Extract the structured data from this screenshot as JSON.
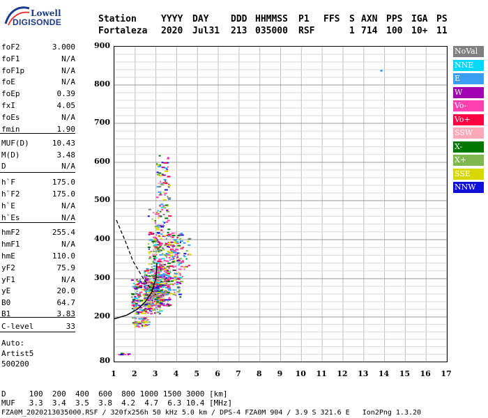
{
  "logo": {
    "top": "Lowell",
    "bottom": "DIGISONDE"
  },
  "header": {
    "row1": [
      "Station",
      "YYYY",
      "DAY",
      "DDD",
      "HHMMSS",
      "P1",
      "FFS",
      "S",
      "AXN",
      "PPS",
      "IGA",
      "PS"
    ],
    "row2": [
      "Fortaleza",
      "2020",
      "Jul31",
      "213",
      "035000",
      "RSF",
      "1",
      "714",
      "100",
      "10+",
      "11"
    ]
  },
  "params": [
    {
      "label": "foF2",
      "value": "3.000"
    },
    {
      "label": "foF1",
      "value": "N/A"
    },
    {
      "label": "foF1p",
      "value": "N/A"
    },
    {
      "label": "foE",
      "value": "N/A"
    },
    {
      "label": "foEp",
      "value": "0.39"
    },
    {
      "label": "fxI",
      "value": "4.05"
    },
    {
      "label": "foEs",
      "value": "N/A"
    },
    {
      "label": "fmin",
      "value": "1.90"
    },
    {
      "label": "MUF(D)",
      "value": "10.43"
    },
    {
      "label": "M(D)",
      "value": "3.48"
    },
    {
      "label": "D",
      "value": "N/A"
    },
    {
      "label": "h`F",
      "value": "175.0"
    },
    {
      "label": "h`F2",
      "value": "175.0"
    },
    {
      "label": "h`E",
      "value": "N/A"
    },
    {
      "label": "h`Es",
      "value": "N/A"
    },
    {
      "label": "hmF2",
      "value": "255.4"
    },
    {
      "label": "hmF1",
      "value": "N/A"
    },
    {
      "label": "hmE",
      "value": "110.0"
    },
    {
      "label": "yF2",
      "value": "75.9"
    },
    {
      "label": "yF1",
      "value": "N/A"
    },
    {
      "label": "yE",
      "value": "20.0"
    },
    {
      "label": "B0",
      "value": "64.7"
    },
    {
      "label": "B1",
      "value": "3.83"
    },
    {
      "label": "C-level",
      "value": "33"
    }
  ],
  "auto": {
    "line1": "Auto:",
    "line2": "Artist5",
    "line3": "500200"
  },
  "legend": [
    {
      "label": "NoVal",
      "color": "#808080"
    },
    {
      "label": "NNE",
      "color": "#00d8ff"
    },
    {
      "label": "E",
      "color": "#3a9ff2"
    },
    {
      "label": "W",
      "color": "#a000b0"
    },
    {
      "label": "Vo-",
      "color": "#ff40b0"
    },
    {
      "label": "Vo+",
      "color": "#ff0040"
    },
    {
      "label": "SSW",
      "color": "#ffa8b8"
    },
    {
      "label": "X-",
      "color": "#007800"
    },
    {
      "label": "X+",
      "color": "#80b850"
    },
    {
      "label": "SSE",
      "color": "#d8d800"
    },
    {
      "label": "NNW",
      "color": "#1010d8"
    }
  ],
  "chart_data": {
    "type": "scatter",
    "xlim": [
      1,
      17
    ],
    "ylim": [
      80,
      900
    ],
    "x_ticks": [
      "1",
      "2",
      "3",
      "4",
      "5",
      "6",
      "7",
      "8",
      "9",
      "10",
      "11",
      "12",
      "13",
      "14",
      "15",
      "16",
      "17"
    ],
    "y_ticks": [
      "80",
      "200",
      "300",
      "400",
      "500",
      "600",
      "700",
      "800",
      "900"
    ],
    "grid": true,
    "trace": [
      [
        1.1,
        450
      ],
      [
        1.5,
        400
      ],
      [
        1.9,
        345
      ],
      [
        2.4,
        300
      ],
      [
        2.8,
        270
      ],
      [
        3.0,
        258
      ]
    ],
    "profile": [
      [
        1.0,
        195
      ],
      [
        1.6,
        205
      ],
      [
        2.1,
        220
      ],
      [
        2.5,
        240
      ],
      [
        2.8,
        265
      ],
      [
        3.0,
        300
      ],
      [
        3.05,
        340
      ]
    ]
  },
  "footer": {
    "line1": "D     100  200  400  600  800 1000 1500 3000 [km]",
    "line2": "MUF   3.3  3.4  3.5  3.8  4.2  4.7  6.3 10.4 [MHz]",
    "line3": "FZA0M_2020213035000.RSF / 320fx256h 50 kHz 5.0 km / DPS-4 FZA0M 904 / 3.9 S 321.6 E   Ion2Png 1.3.20"
  }
}
